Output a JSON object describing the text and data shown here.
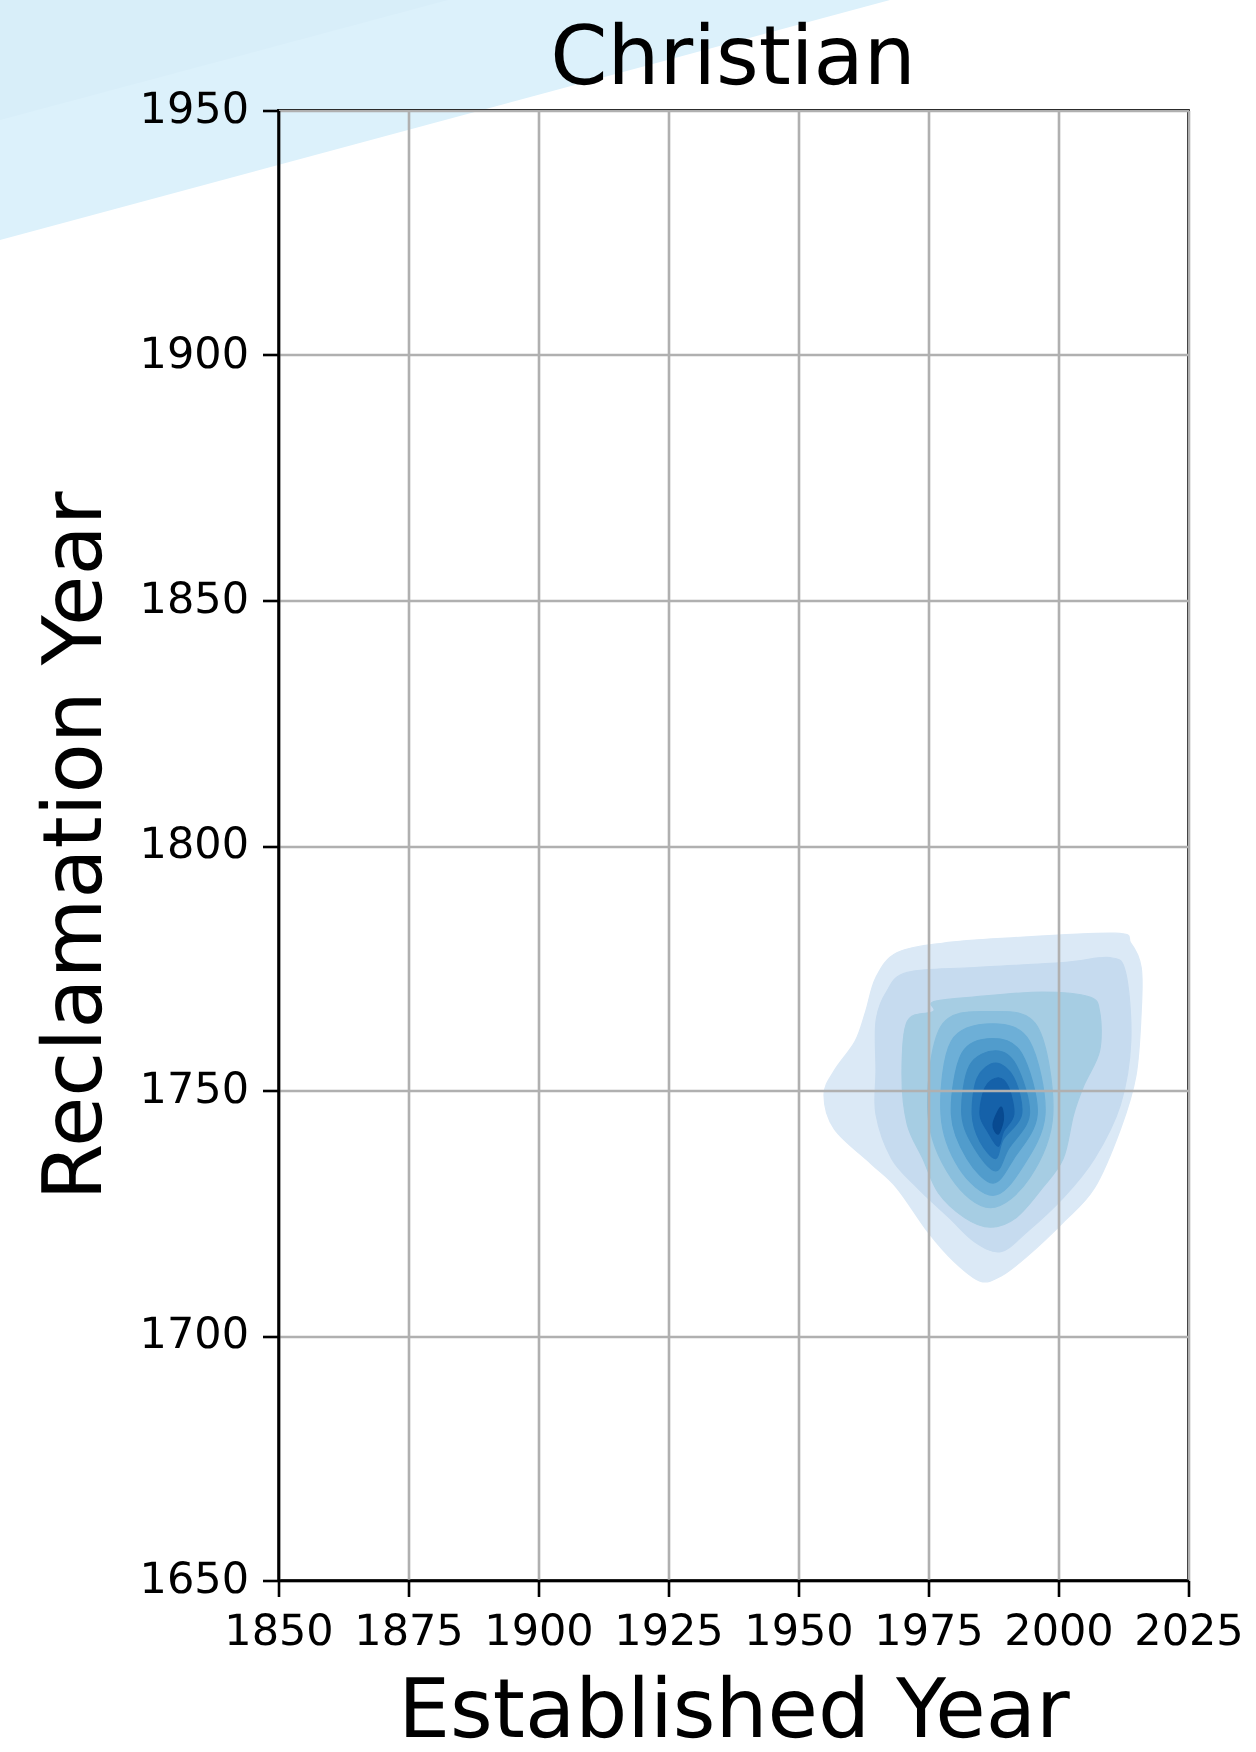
{
  "chart_data": {
    "type": "area",
    "title": "Christian",
    "xlabel": "Established Year",
    "ylabel": "Reclamation Year",
    "xlim": [
      1850,
      2025
    ],
    "ylim": [
      1650,
      1950
    ],
    "xticks": [
      1850,
      1875,
      1900,
      1925,
      1950,
      1975,
      2000,
      2025
    ],
    "yticks": [
      1650,
      1700,
      1750,
      1800,
      1850,
      1900,
      1950
    ],
    "grid": true,
    "series": [
      {
        "color": "#dbe9f6",
        "x": [
          1969,
          1978,
          1990,
          2011,
          2014,
          2016,
          2016,
          2015,
          2012,
          2007,
          2001,
          1994,
          1989,
          1985,
          1980,
          1975,
          1969,
          1964,
          1957,
          1955,
          1957,
          1961,
          1963,
          1965
        ],
        "values": [
          1778,
          1780,
          1781,
          1782,
          1780,
          1775,
          1766,
          1753,
          1742,
          1730,
          1723,
          1716,
          1712,
          1711,
          1715,
          1721,
          1730,
          1735,
          1742,
          1749,
          1754,
          1760,
          1766,
          1773
        ]
      },
      {
        "color": "#c6dbef",
        "x": [
          1967,
          1971,
          1984,
          2001,
          2010,
          2013,
          2014,
          2012,
          2007,
          2001,
          1994,
          1989,
          1984,
          1979,
          1973,
          1968,
          1965,
          1965,
          1965
        ],
        "values": [
          1770,
          1774,
          1775,
          1776,
          1777,
          1774,
          1760,
          1747,
          1736,
          1728,
          1721,
          1717,
          1719,
          1724,
          1730,
          1736,
          1745,
          1754,
          1764
        ]
      },
      {
        "color": "#a6cde3",
        "x": [
          1971,
          1976,
          1976,
          1984,
          1997,
          2006,
          2008,
          2008,
          2005,
          2003,
          2001,
          1997,
          1992,
          1987,
          1982,
          1977,
          1974,
          1971,
          1970
        ],
        "values": [
          1764,
          1766,
          1768,
          1769,
          1770,
          1769,
          1766,
          1758,
          1751,
          1745,
          1736,
          1730,
          1724,
          1722,
          1724,
          1729,
          1736,
          1743,
          1753
        ]
      },
      {
        "color": "#8abfdd",
        "x": [
          1987,
          1996,
          1999,
          1994.5,
          1987,
          1979.5,
          1975,
          1977.5
        ],
        "values": [
          1766,
          1763,
          1745,
          1732,
          1726,
          1732,
          1745,
          1763
        ]
      },
      {
        "color": "#6dafd7",
        "x": [
          1987.5,
          1994.5,
          1997.5,
          1993,
          1987.5,
          1981,
          1977.5,
          1979.5
        ],
        "values": [
          1763.5,
          1760,
          1745,
          1734,
          1728.5,
          1734,
          1745,
          1760
        ]
      },
      {
        "color": "#519ccc",
        "x": [
          1987.5,
          1993,
          1996,
          1991.5,
          1987.5,
          1982.5,
          1979.5,
          1981.5
        ],
        "values": [
          1760.5,
          1757.5,
          1745,
          1736,
          1731,
          1736,
          1745,
          1757.5
        ]
      },
      {
        "color": "#3a89c1",
        "x": [
          1988,
          1992,
          1994.5,
          1990.5,
          1988,
          1984,
          1981.5,
          1983
        ],
        "values": [
          1758,
          1755,
          1745,
          1738,
          1733.5,
          1738,
          1745,
          1755
        ]
      },
      {
        "color": "#2575b7",
        "x": [
          1988,
          1991.5,
          1993,
          1989.5,
          1988,
          1985,
          1983.5,
          1984.5
        ],
        "values": [
          1755.5,
          1752.5,
          1745,
          1740,
          1736,
          1739.5,
          1745,
          1752.5
        ]
      },
      {
        "color": "#1561a9",
        "x": [
          1988.5,
          1990.5,
          1991.5,
          1989.5,
          1988.5,
          1986.5,
          1985,
          1986
        ],
        "values": [
          1752.5,
          1750.5,
          1745,
          1741.5,
          1738.5,
          1741.5,
          1745,
          1750.5
        ]
      },
      {
        "color": "#084a91",
        "x": [
          1989,
          1989.5,
          1988.5,
          1987.5
        ],
        "values": [
          1746.5,
          1744,
          1741,
          1743
        ]
      }
    ]
  }
}
